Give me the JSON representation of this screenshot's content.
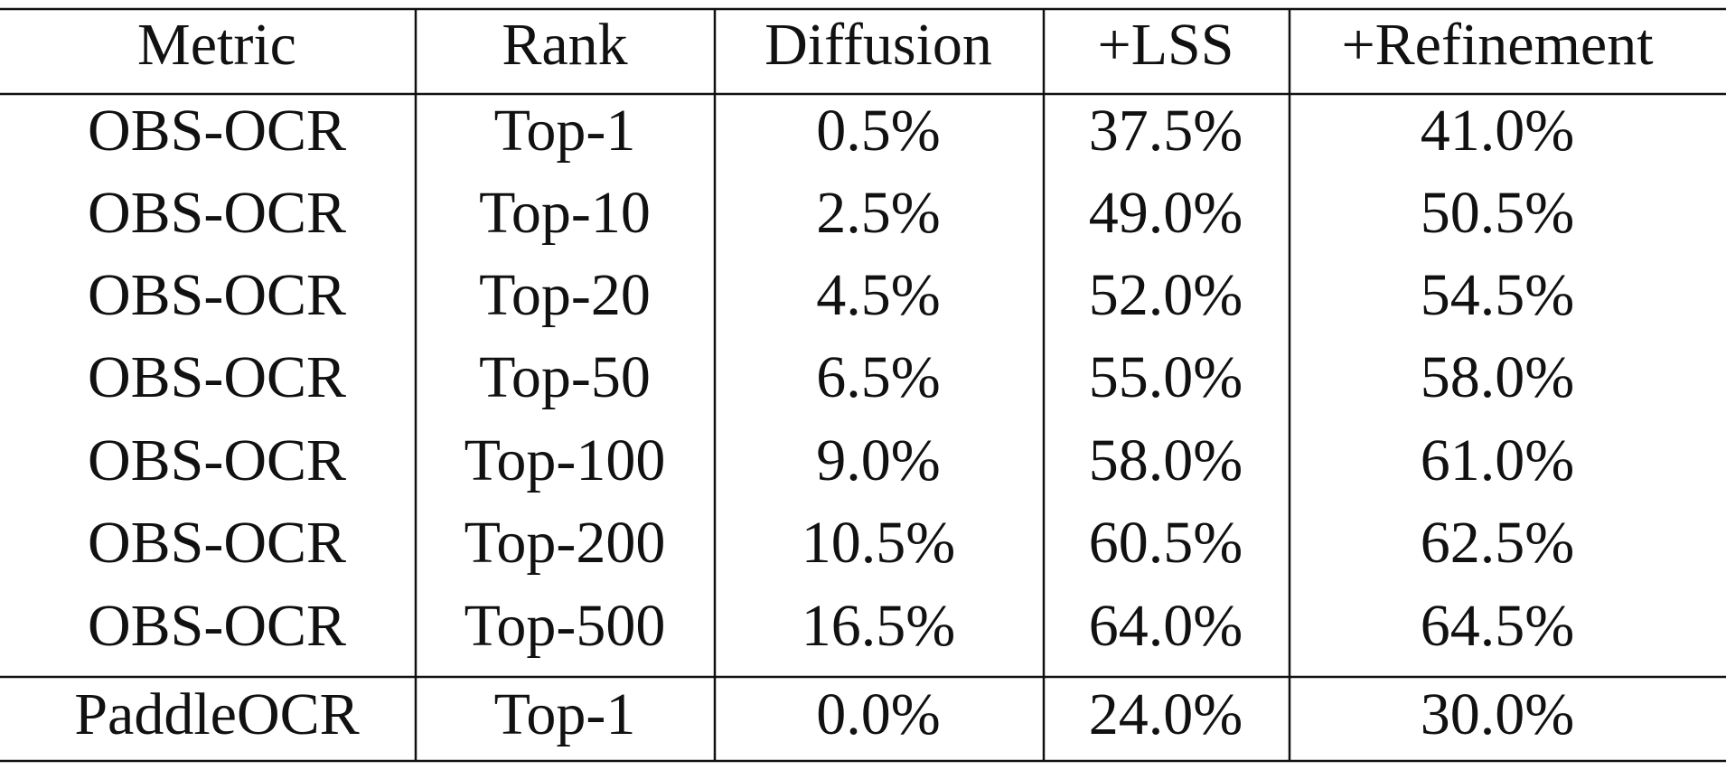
{
  "table": {
    "header": [
      "Metric",
      "Rank",
      "Diffusion",
      "+LSS",
      "+Refinement"
    ],
    "rows": [
      [
        "OBS-OCR",
        "Top-1",
        "0.5%",
        "37.5%",
        "41.0%"
      ],
      [
        "OBS-OCR",
        "Top-10",
        "2.5%",
        "49.0%",
        "50.5%"
      ],
      [
        "OBS-OCR",
        "Top-20",
        "4.5%",
        "52.0%",
        "54.5%"
      ],
      [
        "OBS-OCR",
        "Top-50",
        "6.5%",
        "55.0%",
        "58.0%"
      ],
      [
        "OBS-OCR",
        "Top-100",
        "9.0%",
        "58.0%",
        "61.0%"
      ],
      [
        "OBS-OCR",
        "Top-200",
        "10.5%",
        "60.5%",
        "62.5%"
      ],
      [
        "OBS-OCR",
        "Top-500",
        "16.5%",
        "64.0%",
        "64.5%"
      ],
      [
        "PaddleOCR",
        "Top-1",
        "0.0%",
        "24.0%",
        "30.0%"
      ]
    ]
  }
}
